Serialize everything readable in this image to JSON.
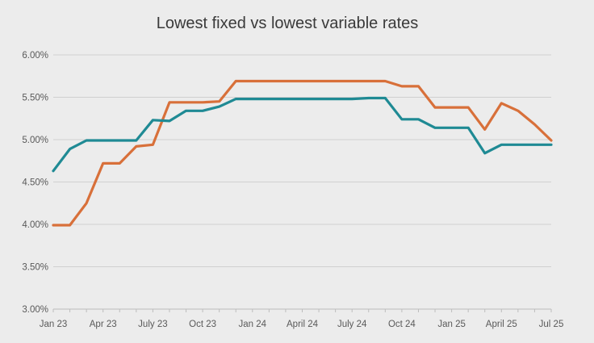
{
  "chart_data": {
    "type": "line",
    "title": "Lowest fixed vs lowest variable rates",
    "xlabel": "",
    "ylabel": "",
    "ylim": [
      3.0,
      6.0
    ],
    "yticks": [
      3.0,
      3.5,
      4.0,
      4.5,
      5.0,
      5.5,
      6.0
    ],
    "ytick_labels": [
      "3.00%",
      "3.50%",
      "4.00%",
      "4.50%",
      "5.00%",
      "5.50%",
      "6.00%"
    ],
    "x_tick_labels": [
      "Jan 23",
      "Apr 23",
      "July 23",
      "Oct 23",
      "Jan 24",
      "April 24",
      "July 24",
      "Oct 24",
      "Jan 25",
      "April 25",
      "Jul 25"
    ],
    "x_tick_months": [
      0,
      3,
      6,
      9,
      12,
      15,
      18,
      21,
      24,
      27,
      30
    ],
    "grid": true,
    "legend": "none",
    "series": [
      {
        "color": "#d8703a",
        "points": [
          [
            0,
            3.99
          ],
          [
            1,
            3.99
          ],
          [
            2,
            4.25
          ],
          [
            3,
            4.72
          ],
          [
            4,
            4.72
          ],
          [
            5,
            4.92
          ],
          [
            6,
            4.94
          ],
          [
            7,
            5.44
          ],
          [
            8,
            5.44
          ],
          [
            9,
            5.44
          ],
          [
            10,
            5.45
          ],
          [
            11,
            5.69
          ],
          [
            12,
            5.69
          ],
          [
            13,
            5.69
          ],
          [
            14,
            5.69
          ],
          [
            15,
            5.69
          ],
          [
            16,
            5.69
          ],
          [
            17,
            5.69
          ],
          [
            18,
            5.69
          ],
          [
            19,
            5.69
          ],
          [
            20,
            5.69
          ],
          [
            21,
            5.63
          ],
          [
            22,
            5.63
          ],
          [
            23,
            5.38
          ],
          [
            24,
            5.38
          ],
          [
            25,
            5.38
          ],
          [
            26,
            5.12
          ],
          [
            27,
            5.43
          ],
          [
            28,
            5.34
          ],
          [
            29,
            5.18
          ],
          [
            30,
            4.99
          ]
        ]
      },
      {
        "color": "#1f8a94",
        "points": [
          [
            0,
            4.63
          ],
          [
            1,
            4.89
          ],
          [
            2,
            4.99
          ],
          [
            3,
            4.99
          ],
          [
            4,
            4.99
          ],
          [
            5,
            4.99
          ],
          [
            6,
            5.23
          ],
          [
            7,
            5.22
          ],
          [
            8,
            5.34
          ],
          [
            9,
            5.34
          ],
          [
            10,
            5.39
          ],
          [
            11,
            5.48
          ],
          [
            12,
            5.48
          ],
          [
            13,
            5.48
          ],
          [
            14,
            5.48
          ],
          [
            15,
            5.48
          ],
          [
            16,
            5.48
          ],
          [
            17,
            5.48
          ],
          [
            18,
            5.48
          ],
          [
            19,
            5.49
          ],
          [
            20,
            5.49
          ],
          [
            21,
            5.24
          ],
          [
            22,
            5.24
          ],
          [
            23,
            5.14
          ],
          [
            24,
            5.14
          ],
          [
            25,
            5.14
          ],
          [
            26,
            4.84
          ],
          [
            27,
            4.94
          ],
          [
            28,
            4.94
          ],
          [
            29,
            4.94
          ],
          [
            30,
            4.94
          ]
        ]
      }
    ]
  }
}
